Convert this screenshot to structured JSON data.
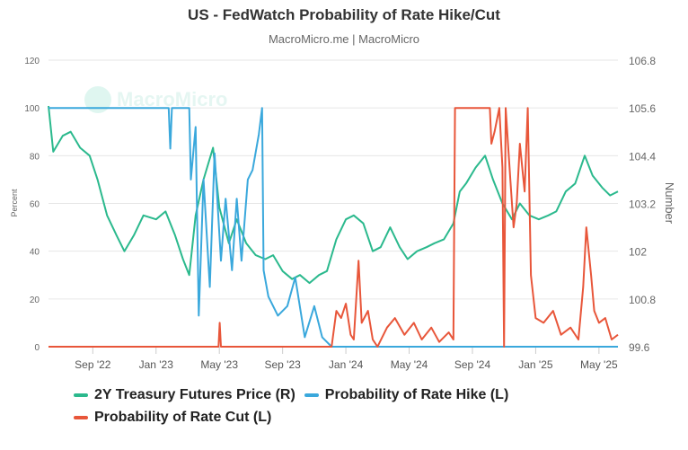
{
  "chart_data": {
    "type": "line",
    "title": "US - FedWatch Probability of Rate Hike/Cut",
    "subtitle": "MacroMicro.me | MacroMicro",
    "watermark": "MacroMicro",
    "x_unit": "months since Jan 2022",
    "xlim": [
      5.2,
      41.2
    ],
    "x_ticks": [
      {
        "value": 8,
        "label": "Sep '22"
      },
      {
        "value": 12,
        "label": "Jan '23"
      },
      {
        "value": 16,
        "label": "May '23"
      },
      {
        "value": 20,
        "label": "Sep '23"
      },
      {
        "value": 24,
        "label": "Jan '24"
      },
      {
        "value": 28,
        "label": "May '24"
      },
      {
        "value": 32,
        "label": "Sep '24"
      },
      {
        "value": 36,
        "label": "Jan '25"
      },
      {
        "value": 40,
        "label": "May '25"
      }
    ],
    "y_left": {
      "label": "Percent",
      "lim": [
        0,
        120
      ],
      "ticks": [
        "0",
        "20",
        "40",
        "60",
        "80",
        "100",
        "120"
      ]
    },
    "y_right": {
      "label": "Number",
      "lim": [
        99.6,
        106.8
      ],
      "ticks": [
        "99.6",
        "100.8",
        "102",
        "103.2",
        "104.4",
        "105.6",
        "106.8"
      ]
    },
    "grid": true,
    "legend_position": "bottom-left",
    "series": [
      {
        "name": "2Y Treasury Futures Price (R)",
        "axis": "right",
        "color": "#2bb98d",
        "x": [
          5.2,
          5.5,
          6.1,
          6.6,
          7.2,
          7.8,
          8.3,
          8.9,
          9.5,
          10.0,
          10.6,
          11.2,
          12.0,
          12.6,
          13.2,
          13.7,
          14.1,
          14.5,
          15.0,
          15.6,
          16.0,
          16.6,
          17.1,
          17.7,
          18.3,
          18.9,
          19.4,
          20.0,
          20.6,
          21.1,
          21.7,
          22.3,
          22.8,
          23.4,
          24.0,
          24.5,
          25.1,
          25.7,
          26.2,
          26.8,
          27.4,
          27.9,
          28.5,
          29.1,
          29.6,
          30.2,
          30.8,
          31.2,
          31.6,
          32.2,
          32.8,
          33.3,
          33.9,
          34.5,
          35.0,
          35.6,
          36.2,
          36.8,
          37.3,
          37.9,
          38.5,
          39.1,
          39.6,
          40.2,
          40.7,
          41.2
        ],
        "y": [
          105.65,
          104.5,
          104.9,
          105.0,
          104.6,
          104.4,
          103.8,
          102.9,
          102.4,
          102.0,
          102.4,
          102.9,
          102.8,
          103.0,
          102.4,
          101.8,
          101.4,
          102.9,
          103.8,
          104.6,
          103.1,
          102.2,
          102.8,
          102.2,
          101.9,
          101.8,
          101.9,
          101.5,
          101.3,
          101.4,
          101.2,
          101.4,
          101.5,
          102.3,
          102.8,
          102.9,
          102.7,
          102.0,
          102.1,
          102.6,
          102.1,
          101.8,
          102.0,
          102.1,
          102.2,
          102.3,
          102.7,
          103.5,
          103.7,
          104.1,
          104.4,
          103.8,
          103.2,
          102.8,
          103.2,
          102.9,
          102.8,
          102.9,
          103.0,
          103.5,
          103.7,
          104.4,
          103.9,
          103.6,
          103.4,
          103.5
        ]
      },
      {
        "name": "Probability of Rate Hike (L)",
        "axis": "left",
        "color": "#3aa8dc",
        "x": [
          5.2,
          12.8,
          12.9,
          13.0,
          14.1,
          14.2,
          14.5,
          14.7,
          15.0,
          15.4,
          15.7,
          16.1,
          16.4,
          16.8,
          17.1,
          17.4,
          17.8,
          18.1,
          18.5,
          18.7,
          18.8,
          19.1,
          19.7,
          20.3,
          20.8,
          21.4,
          22.0,
          22.5,
          23.1,
          41.2
        ],
        "y": [
          100,
          100,
          83,
          100,
          100,
          70,
          92,
          13,
          70,
          25,
          81,
          36,
          62,
          32,
          62,
          36,
          70,
          74,
          89,
          100,
          32,
          21,
          13,
          17,
          29,
          4,
          17,
          4,
          0,
          0
        ]
      },
      {
        "name": "Probability of Rate Cut (L)",
        "axis": "left",
        "color": "#e8563a",
        "x": [
          5.2,
          15.95,
          16.02,
          16.1,
          23.1,
          23.4,
          23.7,
          24.0,
          24.3,
          24.5,
          24.8,
          25.0,
          25.4,
          25.7,
          26.0,
          26.6,
          27.1,
          27.7,
          28.3,
          28.8,
          29.4,
          29.9,
          30.5,
          30.8,
          30.9,
          33.1,
          33.2,
          33.4,
          33.7,
          33.9,
          34.0,
          34.1,
          34.4,
          34.6,
          34.8,
          35.0,
          35.3,
          35.5,
          35.7,
          36.0,
          36.5,
          37.1,
          37.6,
          38.2,
          38.7,
          39.0,
          39.2,
          39.5,
          39.7,
          40.0,
          40.4,
          40.8,
          41.2
        ],
        "y": [
          0,
          0,
          10,
          0,
          0,
          15,
          12,
          18,
          5,
          3,
          36,
          10,
          15,
          3,
          0,
          8,
          12,
          5,
          10,
          3,
          8,
          2,
          6,
          3,
          100,
          100,
          85,
          90,
          100,
          75,
          0,
          100,
          70,
          50,
          60,
          85,
          65,
          100,
          30,
          12,
          10,
          15,
          5,
          8,
          3,
          25,
          50,
          30,
          15,
          10,
          12,
          3,
          5
        ]
      }
    ]
  }
}
